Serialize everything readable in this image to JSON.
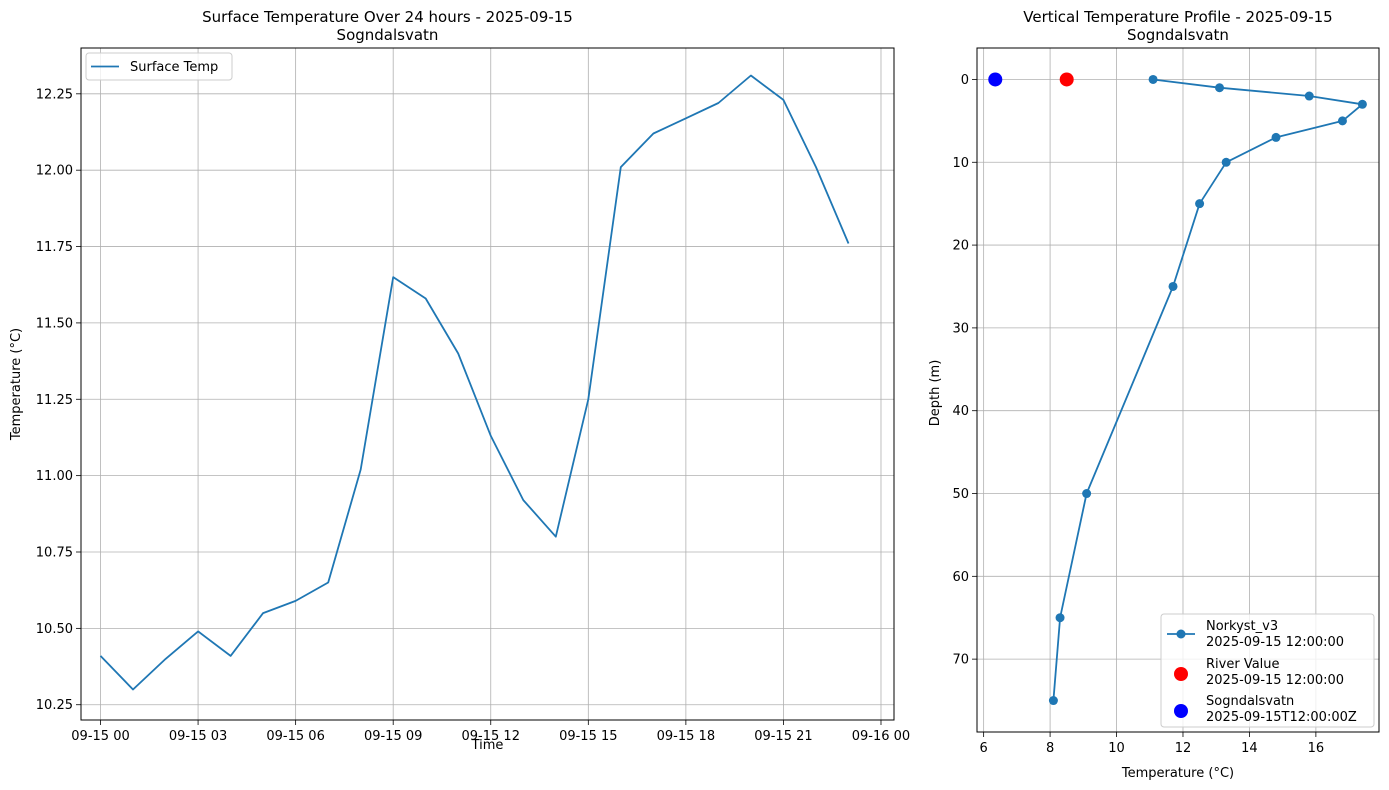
{
  "colors": {
    "series": "#1f77b4",
    "river": "#ff0000",
    "station": "#0000ff",
    "grid": "#b0b0b0"
  },
  "chart_data": [
    {
      "type": "line",
      "title": "Surface Temperature Over 24 hours - 2025-09-15",
      "subtitle": "Sogndalsvatn",
      "xlabel": "Time",
      "ylabel": "Temperature (°C)",
      "grid": true,
      "legend_position": "top-left",
      "xlim": [
        -0.6,
        24.4
      ],
      "ylim": [
        10.2,
        12.4
      ],
      "x_ticks": [
        0,
        3,
        6,
        9,
        12,
        15,
        18,
        21,
        24
      ],
      "x_tick_labels": [
        "09-15 00",
        "09-15 03",
        "09-15 06",
        "09-15 09",
        "09-15 12",
        "09-15 15",
        "09-15 18",
        "09-15 21",
        "09-16 00"
      ],
      "y_ticks": [
        10.25,
        10.5,
        10.75,
        11.0,
        11.25,
        11.5,
        11.75,
        12.0,
        12.25
      ],
      "y_tick_labels": [
        "10.25",
        "10.50",
        "10.75",
        "11.00",
        "11.25",
        "11.50",
        "11.75",
        "12.00",
        "12.25"
      ],
      "series": [
        {
          "name": "Surface Temp",
          "x": [
            0,
            1,
            2,
            3,
            4,
            5,
            6,
            7,
            8,
            9,
            10,
            11,
            12,
            13,
            14,
            15,
            16,
            17,
            18,
            19,
            20,
            21,
            22,
            23
          ],
          "y": [
            10.41,
            10.3,
            10.4,
            10.49,
            10.41,
            10.55,
            10.59,
            10.65,
            11.02,
            11.65,
            11.58,
            11.4,
            11.13,
            10.92,
            10.8,
            11.25,
            12.01,
            12.12,
            12.17,
            12.22,
            12.31,
            12.23,
            12.01,
            11.76
          ]
        }
      ]
    },
    {
      "type": "line",
      "title": "Vertical Temperature Profile - 2025-09-15",
      "subtitle": "Sogndalsvatn",
      "xlabel": "Temperature (°C)",
      "ylabel": "Depth (m)",
      "grid": true,
      "legend_position": "bottom-right",
      "y_inverted": true,
      "xlim": [
        5.8,
        17.9
      ],
      "ylim": [
        -3.8,
        78.8
      ],
      "x_ticks": [
        6,
        8,
        10,
        12,
        14,
        16
      ],
      "x_tick_labels": [
        "6",
        "8",
        "10",
        "12",
        "14",
        "16"
      ],
      "y_ticks": [
        0,
        10,
        20,
        30,
        40,
        50,
        60,
        70
      ],
      "y_tick_labels": [
        "0",
        "10",
        "20",
        "30",
        "40",
        "50",
        "60",
        "70"
      ],
      "series": [
        {
          "name": "Norkyst_v3",
          "sub": "2025-09-15 12:00:00",
          "kind": "line-marker",
          "temperature": [
            11.1,
            13.1,
            15.8,
            17.4,
            16.8,
            14.8,
            13.3,
            12.5,
            11.7,
            9.1,
            8.3,
            8.1
          ],
          "depth": [
            0,
            1,
            2,
            3,
            5,
            7,
            10,
            15,
            25,
            50,
            65,
            75
          ]
        },
        {
          "name": "River Value",
          "sub": "2025-09-15 12:00:00",
          "kind": "point",
          "temperature": [
            8.5
          ],
          "depth": [
            0
          ]
        },
        {
          "name": "Sogndalsvatn",
          "sub": "2025-09-15T12:00:00Z",
          "kind": "point",
          "temperature": [
            6.35
          ],
          "depth": [
            0
          ]
        }
      ]
    }
  ]
}
